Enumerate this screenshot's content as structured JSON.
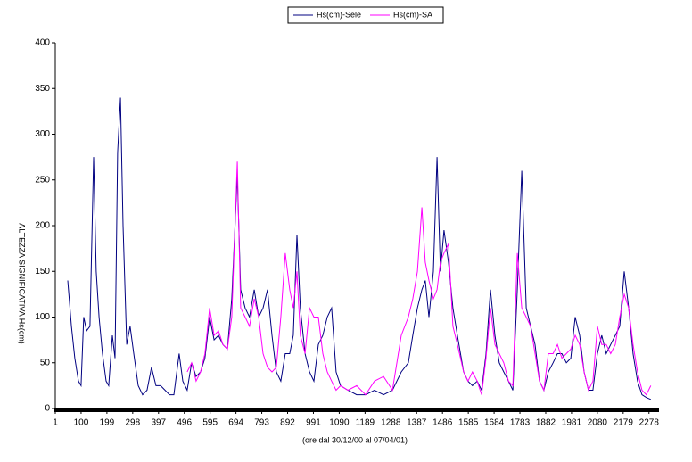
{
  "chart_data": {
    "type": "line",
    "xlabel": "(ore dal 30/12/00 al 07/04/01)",
    "ylabel": "ALTEZZA SIGNIFICATIVA Hs(cm)",
    "xlim": [
      1,
      2313
    ],
    "xticks": [
      1,
      100,
      199,
      298,
      397,
      496,
      595,
      694,
      793,
      892,
      991,
      1090,
      1189,
      1288,
      1387,
      1486,
      1585,
      1684,
      1783,
      1882,
      1981,
      2080,
      2179,
      2278
    ],
    "ylim": [
      0,
      400
    ],
    "yticks": [
      0,
      50,
      100,
      150,
      200,
      250,
      300,
      350,
      400
    ],
    "grid": false,
    "legend": "top",
    "x": [
      49,
      63,
      76,
      90,
      100,
      110,
      121,
      134,
      148,
      158,
      169,
      182,
      196,
      206,
      220,
      230,
      240,
      251,
      261,
      275,
      288,
      302,
      319,
      336,
      353,
      370,
      387,
      405,
      422,
      439,
      456,
      476,
      490,
      507,
      524,
      541,
      558,
      575,
      593,
      610,
      627,
      644,
      661,
      678,
      699,
      712,
      729,
      746,
      764,
      781,
      798,
      815,
      832,
      849,
      866,
      883,
      900,
      914,
      928,
      941,
      959,
      976,
      993,
      1010,
      1027,
      1044,
      1061,
      1078,
      1095,
      1123,
      1157,
      1191,
      1225,
      1260,
      1294,
      1328,
      1355,
      1372,
      1390,
      1407,
      1420,
      1434,
      1451,
      1465,
      1478,
      1492,
      1509,
      1526,
      1543,
      1567,
      1584,
      1601,
      1619,
      1636,
      1653,
      1670,
      1687,
      1704,
      1721,
      1739,
      1756,
      1773,
      1790,
      1807,
      1824,
      1841,
      1858,
      1875,
      1892,
      1910,
      1927,
      1944,
      1961,
      1978,
      1995,
      2012,
      2029,
      2046,
      2063,
      2080,
      2097,
      2114,
      2131,
      2149,
      2166,
      2183,
      2200,
      2217,
      2234,
      2251,
      2268,
      2285
    ],
    "series": [
      {
        "name": "Hs(cm)-Sele",
        "color": "#000080",
        "values": [
          140,
          90,
          55,
          30,
          25,
          100,
          85,
          90,
          275,
          150,
          100,
          60,
          30,
          25,
          80,
          55,
          280,
          340,
          200,
          70,
          90,
          60,
          25,
          15,
          20,
          45,
          25,
          25,
          20,
          15,
          15,
          60,
          30,
          20,
          50,
          35,
          40,
          55,
          100,
          75,
          80,
          70,
          65,
          120,
          255,
          130,
          110,
          100,
          130,
          100,
          110,
          130,
          80,
          40,
          30,
          60,
          60,
          80,
          190,
          110,
          60,
          40,
          30,
          70,
          80,
          100,
          110,
          40,
          25,
          20,
          15,
          15,
          20,
          15,
          20,
          40,
          50,
          80,
          110,
          130,
          140,
          100,
          150,
          275,
          150,
          195,
          160,
          110,
          80,
          40,
          30,
          25,
          30,
          20,
          60,
          130,
          80,
          50,
          40,
          30,
          20,
          130,
          260,
          110,
          90,
          70,
          30,
          20,
          40,
          50,
          60,
          60,
          50,
          55,
          100,
          80,
          40,
          20,
          20,
          60,
          80,
          60,
          70,
          80,
          90,
          150,
          110,
          60,
          30,
          15,
          12,
          10
        ]
      },
      {
        "name": "Hs(cm)-SA",
        "color": "#ff00ff",
        "values": [
          null,
          null,
          null,
          null,
          null,
          null,
          null,
          null,
          null,
          null,
          null,
          null,
          null,
          null,
          null,
          null,
          null,
          null,
          null,
          null,
          null,
          null,
          null,
          null,
          null,
          null,
          null,
          null,
          null,
          null,
          null,
          null,
          null,
          40,
          50,
          30,
          40,
          60,
          110,
          80,
          85,
          70,
          65,
          100,
          270,
          110,
          100,
          90,
          120,
          100,
          60,
          45,
          40,
          45,
          100,
          170,
          130,
          110,
          150,
          80,
          60,
          110,
          100,
          100,
          60,
          40,
          30,
          20,
          25,
          20,
          25,
          15,
          30,
          35,
          20,
          80,
          100,
          120,
          150,
          220,
          160,
          140,
          120,
          130,
          160,
          170,
          180,
          90,
          70,
          40,
          30,
          40,
          30,
          15,
          55,
          110,
          70,
          60,
          50,
          30,
          25,
          170,
          110,
          100,
          90,
          60,
          30,
          20,
          60,
          60,
          70,
          55,
          60,
          65,
          80,
          70,
          40,
          20,
          30,
          90,
          70,
          70,
          60,
          70,
          100,
          125,
          110,
          70,
          40,
          20,
          15,
          25
        ]
      }
    ]
  }
}
